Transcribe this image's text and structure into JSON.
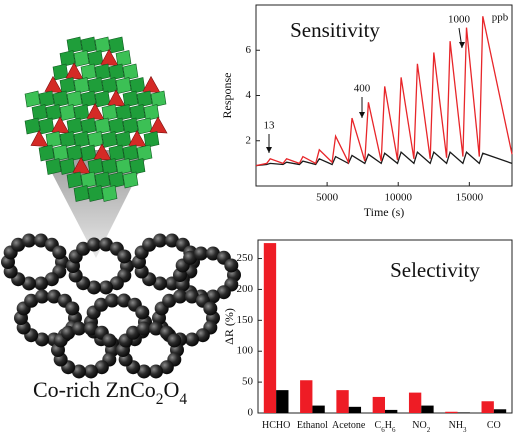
{
  "caption": "Co-rich ZnCo2O4",
  "chart_data": [
    {
      "type": "line",
      "title": "Sensitivity",
      "x_label": "Time (s)",
      "y_label": "Response",
      "x": [
        0,
        750,
        1000,
        1900,
        2150,
        3050,
        3300,
        4200,
        4450,
        5350,
        5600,
        6500,
        6750,
        7650,
        7900,
        8800,
        9050,
        9950,
        10200,
        11100,
        11350,
        12250,
        12500,
        13400,
        13650,
        14550,
        14800,
        15700,
        15950,
        18000
      ],
      "series": [
        {
          "color": "#e8262a",
          "values": [
            0.9,
            1.0,
            1.2,
            1.0,
            1.2,
            1.0,
            1.3,
            1.0,
            1.6,
            1.05,
            2.2,
            1.05,
            3.0,
            1.1,
            3.7,
            1.1,
            4.4,
            1.15,
            4.8,
            1.2,
            5.4,
            1.2,
            5.9,
            1.25,
            6.4,
            1.3,
            7.0,
            1.3,
            7.5,
            1.4
          ]
        },
        {
          "color": "#1a1a1a",
          "values": [
            0.9,
            0.95,
            1.0,
            0.95,
            1.05,
            0.95,
            1.1,
            0.95,
            1.2,
            0.95,
            1.3,
            1.0,
            1.35,
            1.0,
            1.4,
            1.0,
            1.45,
            1.0,
            1.5,
            1.0,
            1.5,
            1.0,
            1.5,
            1.0,
            1.5,
            1.0,
            1.5,
            1.0,
            1.45,
            1.0
          ]
        }
      ],
      "xlim": [
        0,
        18000
      ],
      "ylim": [
        0,
        8
      ],
      "xticks": [
        5000,
        10000,
        15000
      ],
      "yticks": [
        2,
        4,
        6
      ],
      "annotations": [
        "13",
        "400",
        "1000",
        "ppb"
      ]
    },
    {
      "type": "bar",
      "title": "Selectivity",
      "y_label": "ΔR (%)",
      "categories": [
        "HCHO",
        "Ethanol",
        "Acetone",
        "C6H6",
        "NO2",
        "NH3",
        "CO"
      ],
      "series": [
        {
          "color": "#ee1c25",
          "values": [
            275,
            53,
            37,
            26,
            33,
            2,
            19
          ]
        },
        {
          "color": "#000000",
          "values": [
            37,
            12,
            10,
            5,
            12,
            1,
            6
          ]
        }
      ],
      "ylim": [
        0,
        280
      ],
      "yticks": [
        0,
        50,
        100,
        150,
        200,
        250
      ]
    }
  ]
}
